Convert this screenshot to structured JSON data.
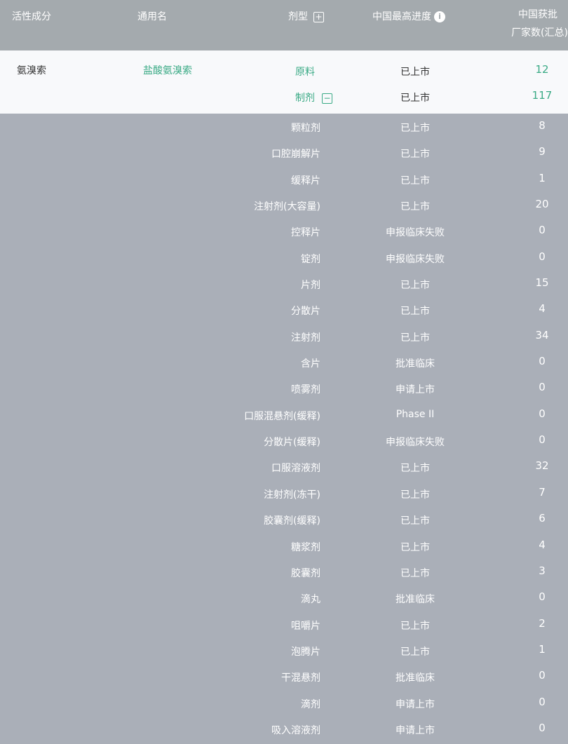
{
  "header": {
    "active_ingredient": "活性成分",
    "generic_name": "通用名",
    "dosage_form": "剂型",
    "progress": "中国最高进度",
    "approved_line1": "中国获批",
    "approved_line2": "厂家数(汇总)",
    "expand_icon": "plus-box",
    "info_icon": "info-circle"
  },
  "main": {
    "ingredient": "氨溴索",
    "generic": "盐酸氨溴索",
    "entries": [
      {
        "form": "原料",
        "progress": "已上市",
        "count": "12"
      },
      {
        "form": "制剂",
        "progress": "已上市",
        "count": "117"
      }
    ],
    "collapse_icon": "minus-box"
  },
  "rows": [
    {
      "form": "颗粒剂",
      "progress": "已上市",
      "count": "8"
    },
    {
      "form": "口腔崩解片",
      "progress": "已上市",
      "count": "9"
    },
    {
      "form": "缓释片",
      "progress": "已上市",
      "count": "1"
    },
    {
      "form": "注射剂(大容量)",
      "progress": "已上市",
      "count": "20"
    },
    {
      "form": "控释片",
      "progress": "申报临床失败",
      "count": "0"
    },
    {
      "form": "锭剂",
      "progress": "申报临床失败",
      "count": "0"
    },
    {
      "form": "片剂",
      "progress": "已上市",
      "count": "15"
    },
    {
      "form": "分散片",
      "progress": "已上市",
      "count": "4"
    },
    {
      "form": "注射剂",
      "progress": "已上市",
      "count": "34"
    },
    {
      "form": "含片",
      "progress": "批准临床",
      "count": "0"
    },
    {
      "form": "喷雾剂",
      "progress": "申请上市",
      "count": "0"
    },
    {
      "form": "口服混悬剂(缓释)",
      "progress": "Phase II",
      "count": "0"
    },
    {
      "form": "分散片(缓释)",
      "progress": "申报临床失败",
      "count": "0"
    },
    {
      "form": "口服溶液剂",
      "progress": "已上市",
      "count": "32"
    },
    {
      "form": "注射剂(冻干)",
      "progress": "已上市",
      "count": "7"
    },
    {
      "form": "胶囊剂(缓释)",
      "progress": "已上市",
      "count": "6"
    },
    {
      "form": "糖浆剂",
      "progress": "已上市",
      "count": "4"
    },
    {
      "form": "胶囊剂",
      "progress": "已上市",
      "count": "3"
    },
    {
      "form": "滴丸",
      "progress": "批准临床",
      "count": "0"
    },
    {
      "form": "咀嚼片",
      "progress": "已上市",
      "count": "2"
    },
    {
      "form": "泡腾片",
      "progress": "已上市",
      "count": "1"
    },
    {
      "form": "干混悬剂",
      "progress": "批准临床",
      "count": "0"
    },
    {
      "form": "滴剂",
      "progress": "申请上市",
      "count": "0"
    },
    {
      "form": "吸入溶液剂",
      "progress": "申请上市",
      "count": "0"
    }
  ]
}
